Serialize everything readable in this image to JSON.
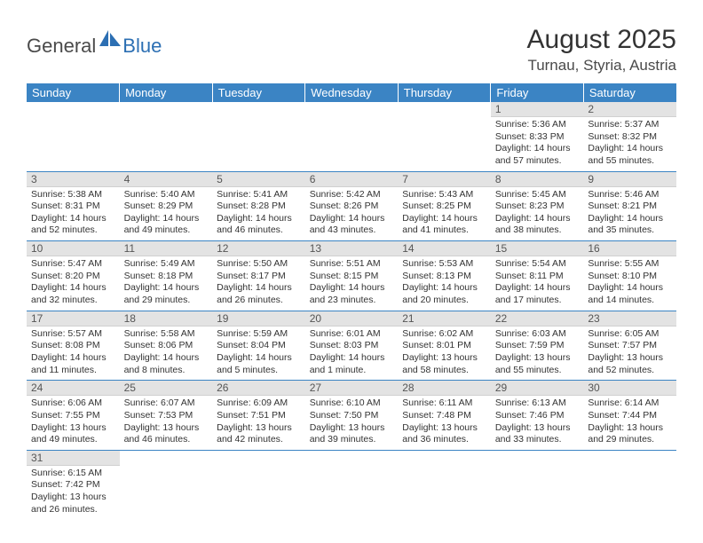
{
  "colors": {
    "header_bg": "#3b84c4",
    "header_text": "#ffffff",
    "daynum_bg": "#e3e3e3",
    "daynum_text": "#555555",
    "body_text": "#333333",
    "divider": "#3b84c4",
    "logo_main": "#4a4a4a",
    "logo_sub": "#2c6fb3"
  },
  "logo": {
    "main": "General",
    "sub": "Blue"
  },
  "title": "August 2025",
  "location": "Turnau, Styria, Austria",
  "weekdays": [
    "Sunday",
    "Monday",
    "Tuesday",
    "Wednesday",
    "Thursday",
    "Friday",
    "Saturday"
  ],
  "weeks": [
    [
      null,
      null,
      null,
      null,
      null,
      {
        "n": "1",
        "sr": "Sunrise: 5:36 AM",
        "ss": "Sunset: 8:33 PM",
        "d1": "Daylight: 14 hours",
        "d2": "and 57 minutes."
      },
      {
        "n": "2",
        "sr": "Sunrise: 5:37 AM",
        "ss": "Sunset: 8:32 PM",
        "d1": "Daylight: 14 hours",
        "d2": "and 55 minutes."
      }
    ],
    [
      {
        "n": "3",
        "sr": "Sunrise: 5:38 AM",
        "ss": "Sunset: 8:31 PM",
        "d1": "Daylight: 14 hours",
        "d2": "and 52 minutes."
      },
      {
        "n": "4",
        "sr": "Sunrise: 5:40 AM",
        "ss": "Sunset: 8:29 PM",
        "d1": "Daylight: 14 hours",
        "d2": "and 49 minutes."
      },
      {
        "n": "5",
        "sr": "Sunrise: 5:41 AM",
        "ss": "Sunset: 8:28 PM",
        "d1": "Daylight: 14 hours",
        "d2": "and 46 minutes."
      },
      {
        "n": "6",
        "sr": "Sunrise: 5:42 AM",
        "ss": "Sunset: 8:26 PM",
        "d1": "Daylight: 14 hours",
        "d2": "and 43 minutes."
      },
      {
        "n": "7",
        "sr": "Sunrise: 5:43 AM",
        "ss": "Sunset: 8:25 PM",
        "d1": "Daylight: 14 hours",
        "d2": "and 41 minutes."
      },
      {
        "n": "8",
        "sr": "Sunrise: 5:45 AM",
        "ss": "Sunset: 8:23 PM",
        "d1": "Daylight: 14 hours",
        "d2": "and 38 minutes."
      },
      {
        "n": "9",
        "sr": "Sunrise: 5:46 AM",
        "ss": "Sunset: 8:21 PM",
        "d1": "Daylight: 14 hours",
        "d2": "and 35 minutes."
      }
    ],
    [
      {
        "n": "10",
        "sr": "Sunrise: 5:47 AM",
        "ss": "Sunset: 8:20 PM",
        "d1": "Daylight: 14 hours",
        "d2": "and 32 minutes."
      },
      {
        "n": "11",
        "sr": "Sunrise: 5:49 AM",
        "ss": "Sunset: 8:18 PM",
        "d1": "Daylight: 14 hours",
        "d2": "and 29 minutes."
      },
      {
        "n": "12",
        "sr": "Sunrise: 5:50 AM",
        "ss": "Sunset: 8:17 PM",
        "d1": "Daylight: 14 hours",
        "d2": "and 26 minutes."
      },
      {
        "n": "13",
        "sr": "Sunrise: 5:51 AM",
        "ss": "Sunset: 8:15 PM",
        "d1": "Daylight: 14 hours",
        "d2": "and 23 minutes."
      },
      {
        "n": "14",
        "sr": "Sunrise: 5:53 AM",
        "ss": "Sunset: 8:13 PM",
        "d1": "Daylight: 14 hours",
        "d2": "and 20 minutes."
      },
      {
        "n": "15",
        "sr": "Sunrise: 5:54 AM",
        "ss": "Sunset: 8:11 PM",
        "d1": "Daylight: 14 hours",
        "d2": "and 17 minutes."
      },
      {
        "n": "16",
        "sr": "Sunrise: 5:55 AM",
        "ss": "Sunset: 8:10 PM",
        "d1": "Daylight: 14 hours",
        "d2": "and 14 minutes."
      }
    ],
    [
      {
        "n": "17",
        "sr": "Sunrise: 5:57 AM",
        "ss": "Sunset: 8:08 PM",
        "d1": "Daylight: 14 hours",
        "d2": "and 11 minutes."
      },
      {
        "n": "18",
        "sr": "Sunrise: 5:58 AM",
        "ss": "Sunset: 8:06 PM",
        "d1": "Daylight: 14 hours",
        "d2": "and 8 minutes."
      },
      {
        "n": "19",
        "sr": "Sunrise: 5:59 AM",
        "ss": "Sunset: 8:04 PM",
        "d1": "Daylight: 14 hours",
        "d2": "and 5 minutes."
      },
      {
        "n": "20",
        "sr": "Sunrise: 6:01 AM",
        "ss": "Sunset: 8:03 PM",
        "d1": "Daylight: 14 hours",
        "d2": "and 1 minute."
      },
      {
        "n": "21",
        "sr": "Sunrise: 6:02 AM",
        "ss": "Sunset: 8:01 PM",
        "d1": "Daylight: 13 hours",
        "d2": "and 58 minutes."
      },
      {
        "n": "22",
        "sr": "Sunrise: 6:03 AM",
        "ss": "Sunset: 7:59 PM",
        "d1": "Daylight: 13 hours",
        "d2": "and 55 minutes."
      },
      {
        "n": "23",
        "sr": "Sunrise: 6:05 AM",
        "ss": "Sunset: 7:57 PM",
        "d1": "Daylight: 13 hours",
        "d2": "and 52 minutes."
      }
    ],
    [
      {
        "n": "24",
        "sr": "Sunrise: 6:06 AM",
        "ss": "Sunset: 7:55 PM",
        "d1": "Daylight: 13 hours",
        "d2": "and 49 minutes."
      },
      {
        "n": "25",
        "sr": "Sunrise: 6:07 AM",
        "ss": "Sunset: 7:53 PM",
        "d1": "Daylight: 13 hours",
        "d2": "and 46 minutes."
      },
      {
        "n": "26",
        "sr": "Sunrise: 6:09 AM",
        "ss": "Sunset: 7:51 PM",
        "d1": "Daylight: 13 hours",
        "d2": "and 42 minutes."
      },
      {
        "n": "27",
        "sr": "Sunrise: 6:10 AM",
        "ss": "Sunset: 7:50 PM",
        "d1": "Daylight: 13 hours",
        "d2": "and 39 minutes."
      },
      {
        "n": "28",
        "sr": "Sunrise: 6:11 AM",
        "ss": "Sunset: 7:48 PM",
        "d1": "Daylight: 13 hours",
        "d2": "and 36 minutes."
      },
      {
        "n": "29",
        "sr": "Sunrise: 6:13 AM",
        "ss": "Sunset: 7:46 PM",
        "d1": "Daylight: 13 hours",
        "d2": "and 33 minutes."
      },
      {
        "n": "30",
        "sr": "Sunrise: 6:14 AM",
        "ss": "Sunset: 7:44 PM",
        "d1": "Daylight: 13 hours",
        "d2": "and 29 minutes."
      }
    ],
    [
      {
        "n": "31",
        "sr": "Sunrise: 6:15 AM",
        "ss": "Sunset: 7:42 PM",
        "d1": "Daylight: 13 hours",
        "d2": "and 26 minutes."
      },
      null,
      null,
      null,
      null,
      null,
      null
    ]
  ]
}
